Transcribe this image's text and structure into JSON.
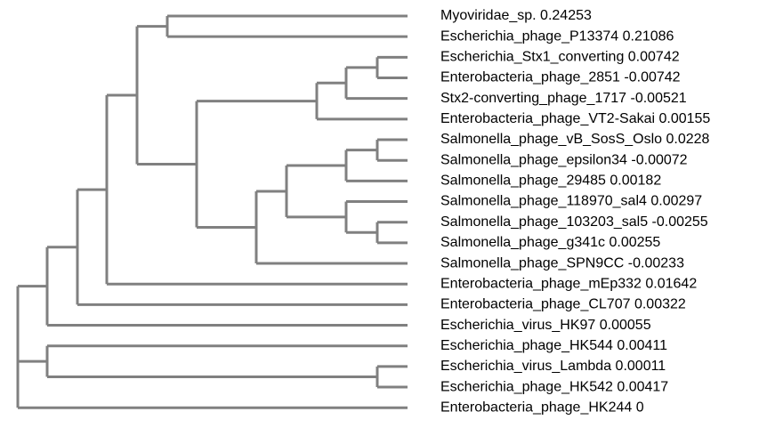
{
  "tree": {
    "leaves": [
      {
        "name": "Myoviridae_sp.",
        "value": "0.24253"
      },
      {
        "name": "Escherichia_phage_P13374",
        "value": "0.21086"
      },
      {
        "name": "Escherichia_Stx1_converting",
        "value": "0.00742"
      },
      {
        "name": "Enterobacteria_phage_2851",
        "value": "-0.00742"
      },
      {
        "name": "Stx2-converting_phage_1717",
        "value": "-0.00521"
      },
      {
        "name": "Enterobacteria_phage_VT2-Sakai",
        "value": "0.00155"
      },
      {
        "name": "Salmonella_phage_vB_SosS_Oslo",
        "value": "0.0228"
      },
      {
        "name": "Salmonella_phage_epsilon34",
        "value": "-0.00072"
      },
      {
        "name": "Salmonella_phage_29485",
        "value": "0.00182"
      },
      {
        "name": "Salmonella_phage_118970_sal4",
        "value": "0.00297"
      },
      {
        "name": "Salmonella_phage_103203_sal5",
        "value": "-0.00255"
      },
      {
        "name": "Salmonella_phage_g341c",
        "value": "0.00255"
      },
      {
        "name": "Salmonella_phage_SPN9CC",
        "value": "-0.00233"
      },
      {
        "name": "Enterobacteria_phage_mEp332",
        "value": "0.01642"
      },
      {
        "name": "Enterobacteria_phage_CL707",
        "value": "0.00322"
      },
      {
        "name": "Escherichia_virus_HK97",
        "value": "0.00055"
      },
      {
        "name": "Escherichia_phage_HK544",
        "value": "0.00411"
      },
      {
        "name": "Escherichia_virus_Lambda",
        "value": "0.00011"
      },
      {
        "name": "Escherichia_phage_HK542",
        "value": "0.00417"
      },
      {
        "name": "Enterobacteria_phage_HK244",
        "value": "0"
      }
    ],
    "branch_color": "#808080",
    "label_color": "#000000"
  }
}
